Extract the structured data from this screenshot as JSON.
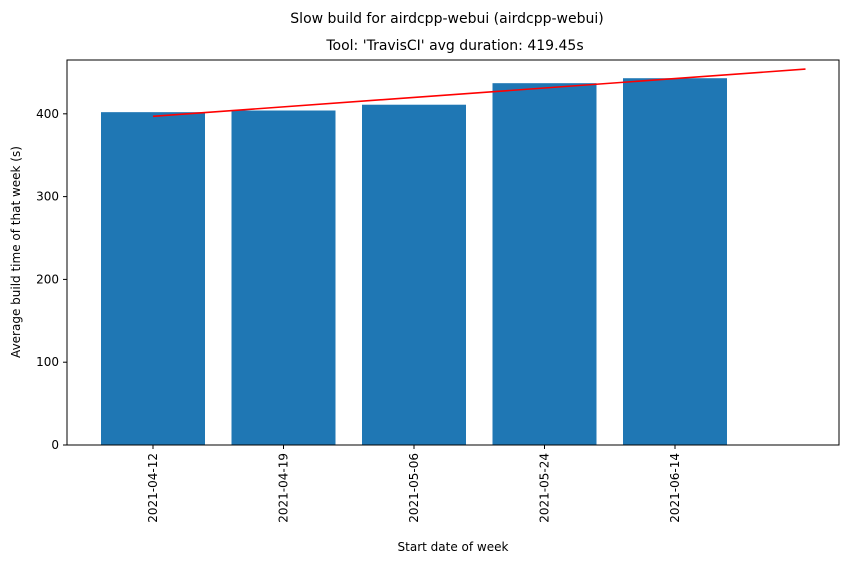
{
  "suptitle": "Slow build for airdcpp-webui (airdcpp-webui)",
  "chart_data": {
    "type": "bar",
    "title": "Tool: 'TravisCI' avg duration: 419.45s",
    "xlabel": "Start date of week",
    "ylabel": "Average build time of that week (s)",
    "categories": [
      "2021-04-12",
      "2021-04-19",
      "2021-05-06",
      "2021-05-24",
      "2021-06-14"
    ],
    "values": [
      402,
      404,
      411,
      437,
      443
    ],
    "ylim": [
      0,
      465
    ],
    "yticks": [
      0,
      100,
      200,
      300,
      400
    ],
    "bar_color": "#1f77b4",
    "trend_line": {
      "color": "#ff0000",
      "x_start": "2021-04-12",
      "y_start": 397,
      "y_end": 454
    },
    "grid": false,
    "legend": false
  }
}
